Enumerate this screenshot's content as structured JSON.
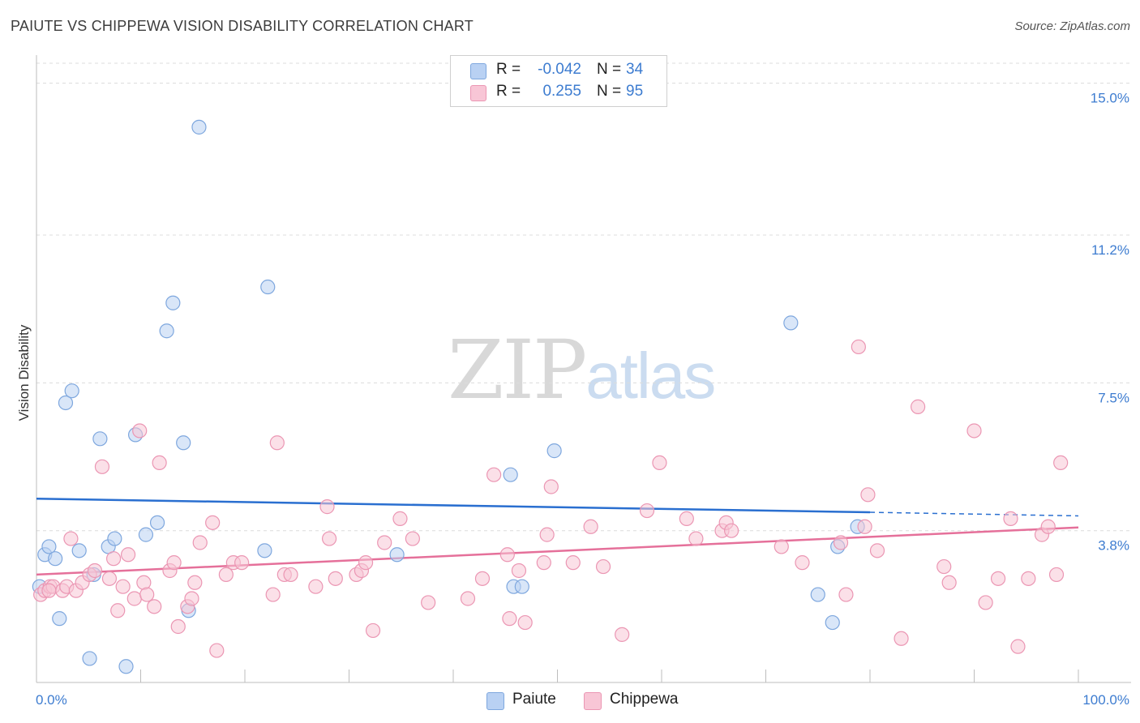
{
  "title": "PAIUTE VS CHIPPEWA VISION DISABILITY CORRELATION CHART",
  "source": "Source: ZipAtlas.com",
  "watermark": {
    "zip": "ZIP",
    "atlas": "atlas"
  },
  "legend_top": [
    {
      "key_r": "R =",
      "r": "-0.042",
      "key_n": "N =",
      "n": "34"
    },
    {
      "key_r": "R =",
      "r": "0.255",
      "key_n": "N =",
      "n": "95"
    }
  ],
  "legend_bottom": [
    "Paiute",
    "Chippewa"
  ],
  "colors": {
    "paiute_fill": "#b9d1f3",
    "paiute_stroke": "#7ea7de",
    "paiute_line": "#2a6fd0",
    "chippewa_fill": "#f8c6d6",
    "chippewa_stroke": "#eb96b3",
    "chippewa_line": "#e5709a",
    "tick_text": "#3d7cd0",
    "grid": "#dcdcdc"
  },
  "chart_data": {
    "type": "scatter",
    "title": "PAIUTE VS CHIPPEWA VISION DISABILITY CORRELATION CHART",
    "xlabel": "",
    "ylabel": "Vision Disability",
    "xlim": [
      0,
      100
    ],
    "ylim": [
      0,
      15.5
    ],
    "y_ticks": [
      3.8,
      7.5,
      11.2,
      15.0
    ],
    "y_tick_labels": [
      "3.8%",
      "7.5%",
      "11.2%",
      "15.0%"
    ],
    "x_tick_labels": [
      "0.0%",
      "100.0%"
    ],
    "grid": true,
    "series": [
      {
        "name": "Paiute",
        "points": [
          [
            0.3,
            2.4
          ],
          [
            0.8,
            3.2
          ],
          [
            1.2,
            3.4
          ],
          [
            1.8,
            3.1
          ],
          [
            2.2,
            1.6
          ],
          [
            2.8,
            7.0
          ],
          [
            3.4,
            7.3
          ],
          [
            4.1,
            3.3
          ],
          [
            5.1,
            0.6
          ],
          [
            5.5,
            2.7
          ],
          [
            6.1,
            6.1
          ],
          [
            6.9,
            3.4
          ],
          [
            7.5,
            3.6
          ],
          [
            8.6,
            0.4
          ],
          [
            9.5,
            6.2
          ],
          [
            10.5,
            3.7
          ],
          [
            11.6,
            4.0
          ],
          [
            12.5,
            8.8
          ],
          [
            13.1,
            9.5
          ],
          [
            14.1,
            6.0
          ],
          [
            14.6,
            1.8
          ],
          [
            15.6,
            13.9
          ],
          [
            21.9,
            3.3
          ],
          [
            22.2,
            9.9
          ],
          [
            34.6,
            3.2
          ],
          [
            45.8,
            2.4
          ],
          [
            46.6,
            2.4
          ],
          [
            45.5,
            5.2
          ],
          [
            49.7,
            5.8
          ],
          [
            72.4,
            9.0
          ],
          [
            75.0,
            2.2
          ],
          [
            76.4,
            1.5
          ],
          [
            76.9,
            3.4
          ],
          [
            78.8,
            3.9
          ]
        ]
      },
      {
        "name": "Chippewa",
        "points": [
          [
            0.4,
            2.2
          ],
          [
            0.8,
            2.3
          ],
          [
            1.3,
            2.4
          ],
          [
            1.6,
            2.4
          ],
          [
            2.5,
            2.3
          ],
          [
            2.9,
            2.4
          ],
          [
            3.3,
            3.6
          ],
          [
            3.8,
            2.3
          ],
          [
            4.4,
            2.5
          ],
          [
            5.1,
            2.7
          ],
          [
            5.6,
            2.8
          ],
          [
            6.3,
            5.4
          ],
          [
            7.0,
            2.6
          ],
          [
            7.4,
            3.1
          ],
          [
            7.8,
            1.8
          ],
          [
            8.3,
            2.4
          ],
          [
            8.8,
            3.2
          ],
          [
            9.4,
            2.1
          ],
          [
            9.9,
            6.3
          ],
          [
            10.3,
            2.5
          ],
          [
            10.6,
            2.2
          ],
          [
            11.3,
            1.9
          ],
          [
            11.8,
            5.5
          ],
          [
            12.8,
            2.8
          ],
          [
            13.2,
            3.0
          ],
          [
            13.6,
            1.4
          ],
          [
            14.5,
            1.9
          ],
          [
            14.9,
            2.1
          ],
          [
            15.2,
            2.5
          ],
          [
            15.7,
            3.5
          ],
          [
            16.9,
            4.0
          ],
          [
            17.3,
            0.8
          ],
          [
            18.2,
            2.7
          ],
          [
            18.9,
            3.0
          ],
          [
            19.7,
            3.0
          ],
          [
            22.7,
            2.2
          ],
          [
            23.1,
            6.0
          ],
          [
            23.8,
            2.7
          ],
          [
            24.4,
            2.7
          ],
          [
            26.8,
            2.4
          ],
          [
            27.9,
            4.4
          ],
          [
            28.1,
            3.6
          ],
          [
            28.7,
            2.6
          ],
          [
            30.7,
            2.7
          ],
          [
            31.2,
            2.8
          ],
          [
            31.6,
            3.0
          ],
          [
            32.3,
            1.3
          ],
          [
            33.4,
            3.5
          ],
          [
            34.9,
            4.1
          ],
          [
            36.1,
            3.6
          ],
          [
            37.6,
            2.0
          ],
          [
            41.4,
            2.1
          ],
          [
            42.8,
            2.6
          ],
          [
            43.9,
            5.2
          ],
          [
            45.2,
            3.2
          ],
          [
            45.4,
            1.6
          ],
          [
            46.3,
            2.8
          ],
          [
            46.9,
            1.5
          ],
          [
            48.7,
            3.0
          ],
          [
            49.0,
            3.7
          ],
          [
            49.4,
            4.9
          ],
          [
            51.5,
            3.0
          ],
          [
            53.2,
            3.9
          ],
          [
            54.4,
            2.9
          ],
          [
            56.2,
            1.2
          ],
          [
            58.6,
            4.3
          ],
          [
            59.8,
            5.5
          ],
          [
            62.4,
            4.1
          ],
          [
            63.3,
            3.6
          ],
          [
            65.8,
            3.8
          ],
          [
            66.2,
            4.0
          ],
          [
            66.7,
            3.8
          ],
          [
            71.5,
            3.4
          ],
          [
            73.5,
            3.0
          ],
          [
            77.2,
            3.5
          ],
          [
            77.7,
            2.2
          ],
          [
            78.9,
            8.4
          ],
          [
            79.5,
            3.9
          ],
          [
            79.8,
            4.7
          ],
          [
            80.7,
            3.3
          ],
          [
            83.0,
            1.1
          ],
          [
            84.6,
            6.9
          ],
          [
            87.1,
            2.9
          ],
          [
            87.6,
            2.5
          ],
          [
            90.0,
            6.3
          ],
          [
            91.1,
            2.0
          ],
          [
            92.3,
            2.6
          ],
          [
            93.5,
            4.1
          ],
          [
            94.2,
            0.9
          ],
          [
            95.2,
            2.6
          ],
          [
            96.5,
            3.7
          ],
          [
            97.1,
            3.9
          ],
          [
            97.9,
            2.7
          ],
          [
            98.3,
            5.5
          ],
          [
            1.2,
            2.3
          ]
        ]
      }
    ],
    "trend_lines": [
      {
        "name": "Paiute",
        "x": [
          0,
          80
        ],
        "y": [
          4.6,
          4.26
        ],
        "dashed_to_x": 100,
        "dashed_to_y": 4.17
      },
      {
        "name": "Chippewa",
        "x": [
          0,
          100
        ],
        "y": [
          2.7,
          3.88
        ]
      }
    ]
  }
}
